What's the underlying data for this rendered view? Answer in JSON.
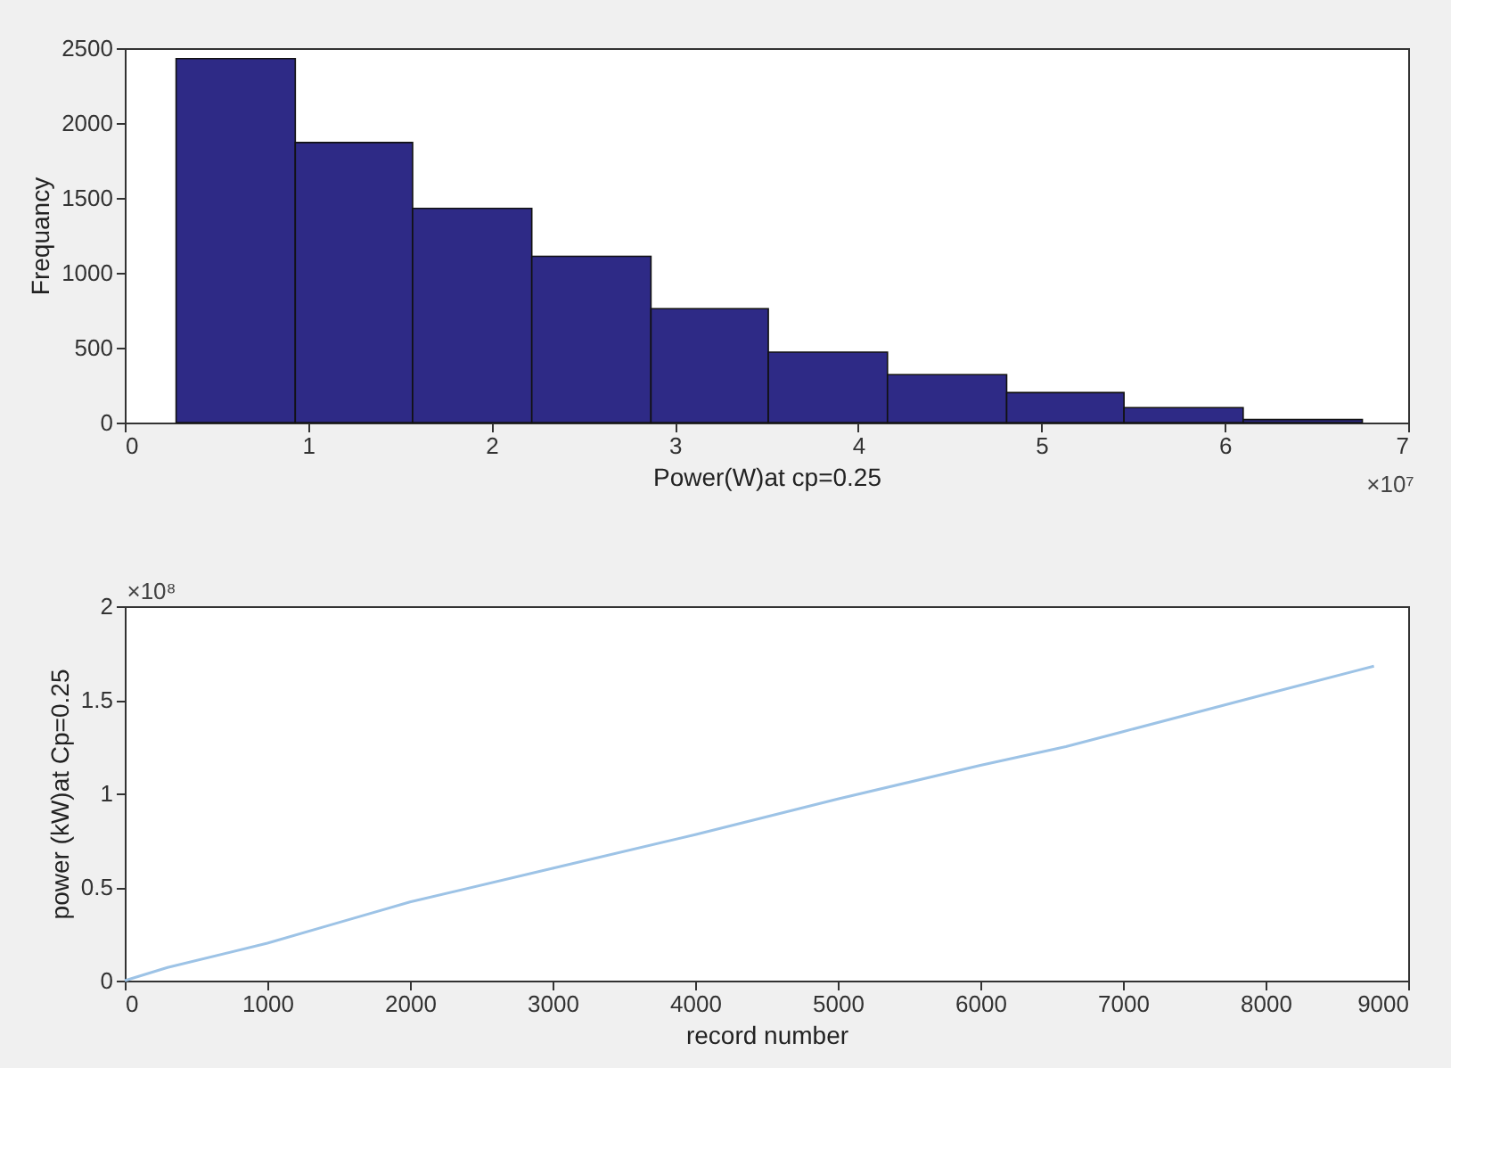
{
  "chart_data": [
    {
      "type": "histogram",
      "xlabel": "Power(W)at cp=0.25",
      "ylabel": "Frequancy",
      "annotations": [
        "×10⁷"
      ],
      "bins": [
        0.28,
        0.93,
        1.57,
        2.22,
        2.87,
        3.51,
        4.16,
        4.81,
        5.45,
        6.1,
        6.75
      ],
      "values": [
        2430,
        1870,
        1430,
        1110,
        760,
        470,
        320,
        200,
        100,
        20
      ],
      "color": "#2e2a86",
      "xlim": [
        0,
        7
      ],
      "xticks": [
        0,
        1,
        2,
        3,
        4,
        5,
        6,
        7
      ],
      "ylim": [
        0,
        2500
      ],
      "yticks": [
        0,
        500,
        1000,
        1500,
        2000,
        2500
      ],
      "grid": false
    },
    {
      "type": "line",
      "xlabel": "record number",
      "ylabel": "power (kW)at Cp=0.25",
      "annotations": [
        "×10⁸"
      ],
      "x": [
        0,
        300,
        1000,
        1500,
        2000,
        3000,
        4000,
        5000,
        6000,
        6600,
        7000,
        8000,
        8760
      ],
      "series": [
        {
          "color": "#9dc3e6",
          "values": [
            0,
            0.07,
            0.2,
            0.31,
            0.42,
            0.6,
            0.78,
            0.97,
            1.15,
            1.25,
            1.33,
            1.53,
            1.68
          ]
        }
      ],
      "xlim": [
        0,
        9000
      ],
      "xticks": [
        0,
        1000,
        2000,
        3000,
        4000,
        5000,
        6000,
        7000,
        8000,
        9000
      ],
      "ylim": [
        0,
        2
      ],
      "yticks": [
        0,
        0.5,
        1,
        1.5,
        2
      ],
      "grid": false,
      "marker": "none"
    }
  ]
}
